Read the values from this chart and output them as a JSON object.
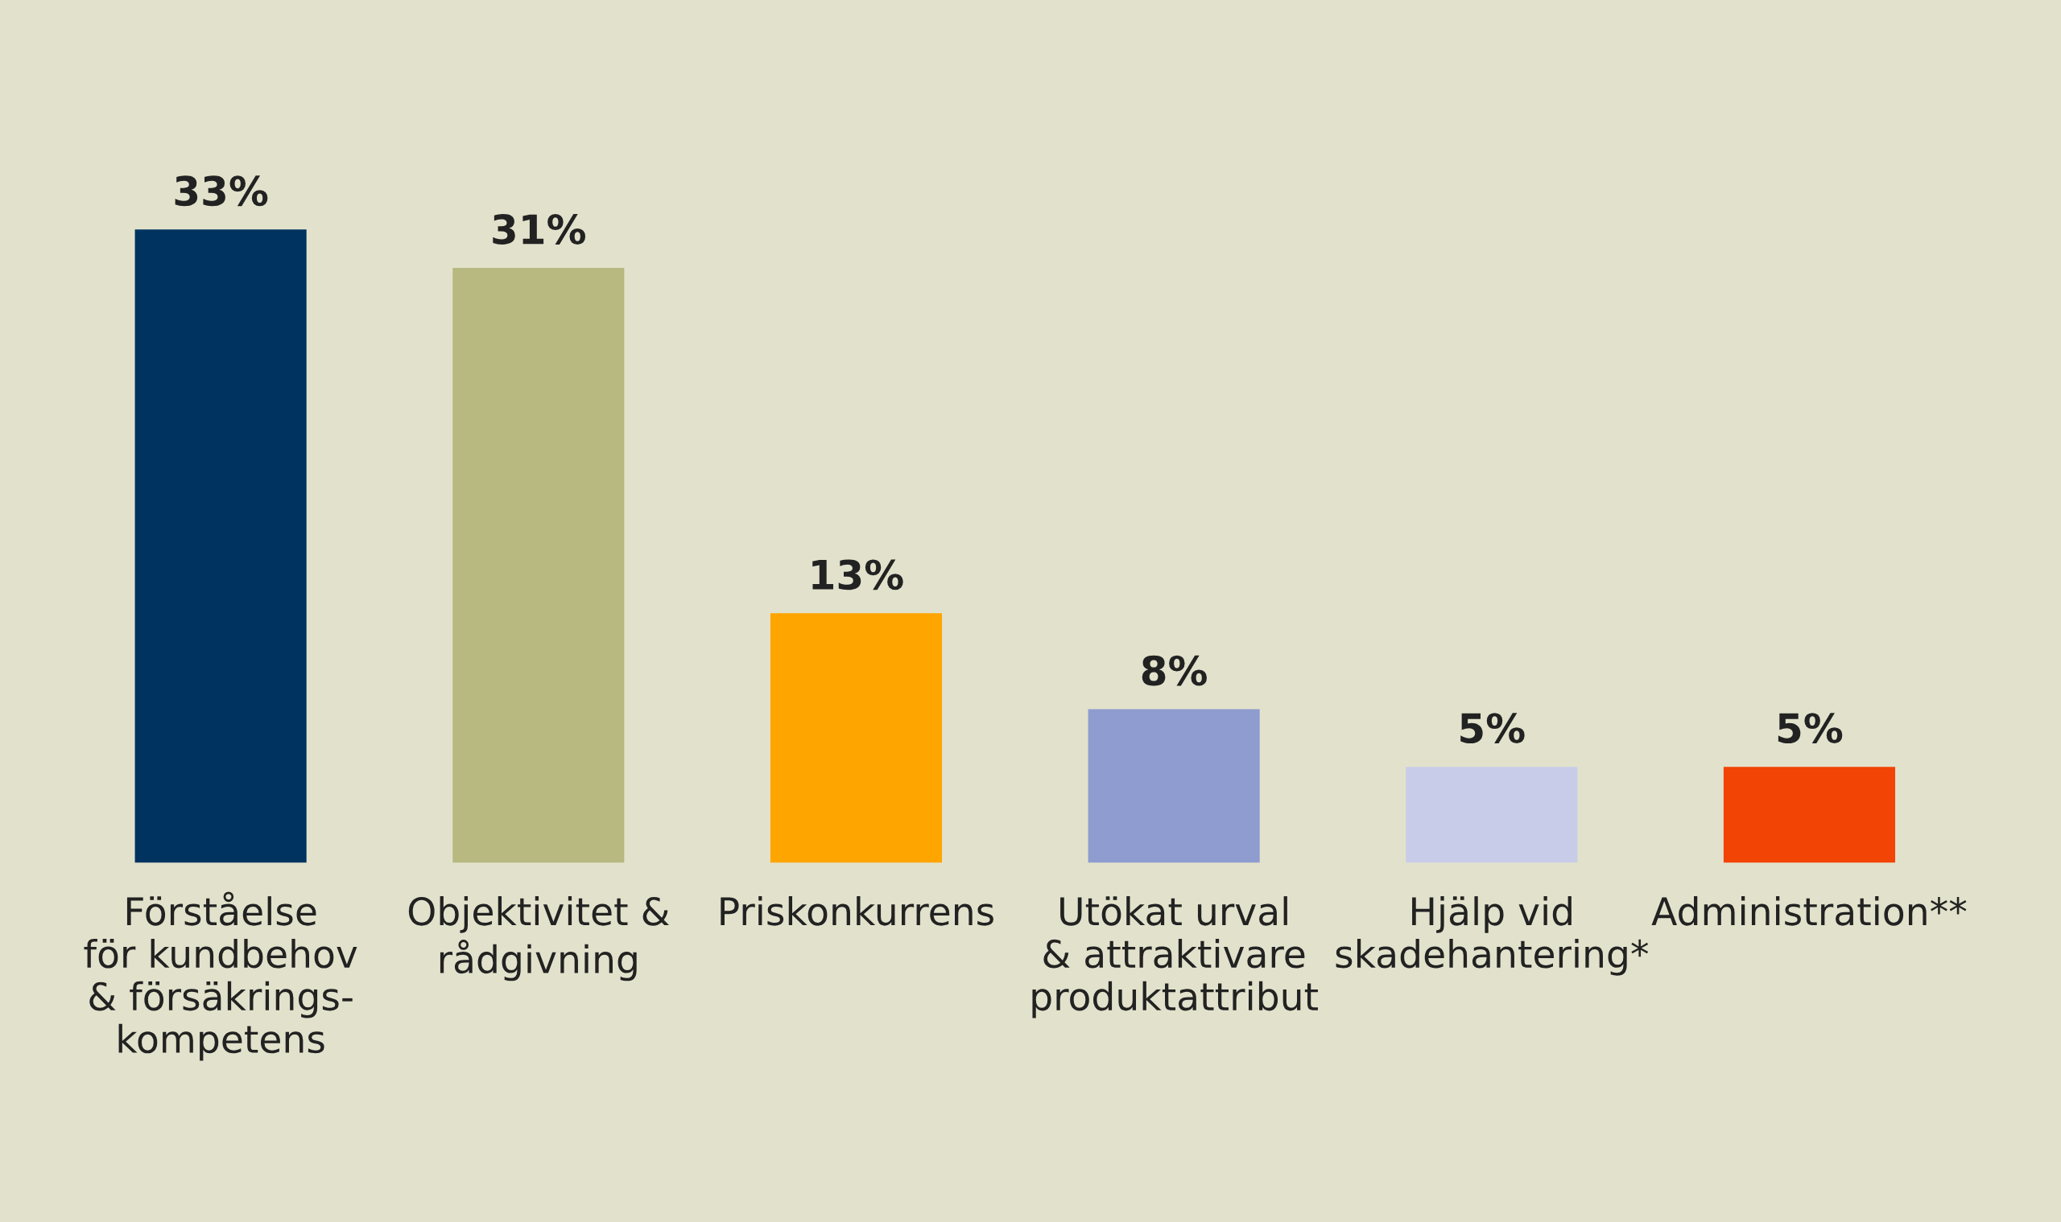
{
  "chart_data": {
    "type": "bar",
    "categories": [
      "Förståelse\nför kundbehov\n& försäkrings-\nkompetens",
      "Objektivitet &\nrådgivning",
      "Priskonkurrens",
      "Utökat urval\n& attraktivare\nproduktattribut",
      "Hjälp vid\nskadehantering*",
      "Administration**"
    ],
    "values": [
      33,
      31,
      13,
      8,
      5,
      5
    ],
    "colors": [
      "#00335f",
      "#b8b980",
      "#ffa500",
      "#8f9ccf",
      "#c8cce8",
      "#f24405"
    ],
    "value_labels": [
      "33%",
      "31%",
      "13%",
      "8%",
      "5%",
      "5%"
    ]
  }
}
